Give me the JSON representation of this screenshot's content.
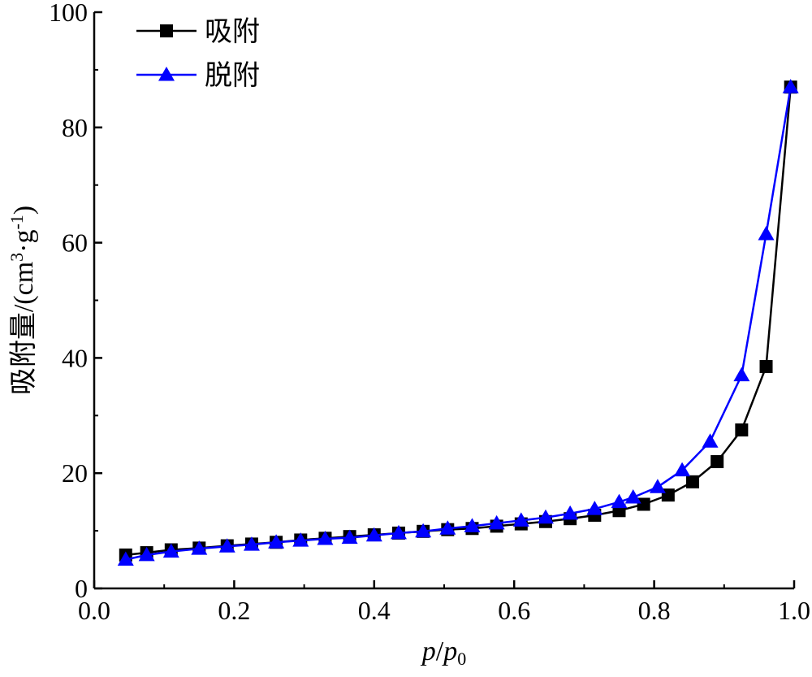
{
  "chart_data": {
    "type": "line",
    "title": "",
    "xlabel": "p/p0",
    "xlabel_parts": {
      "p": "p",
      "slash": "/",
      "p0": "p",
      "sub": "0"
    },
    "ylabel": "吸附量/(cm3·g-1)",
    "ylabel_parts": {
      "main": "吸附量/(cm",
      "sup1": "3",
      "mid": "·g",
      "sup2": "-1",
      "end": ")"
    },
    "xlim": [
      0.0,
      1.0
    ],
    "ylim": [
      0,
      100
    ],
    "x_ticks": [
      "0.0",
      "0.2",
      "0.4",
      "0.6",
      "0.8",
      "1.0"
    ],
    "y_ticks": [
      "0",
      "20",
      "40",
      "60",
      "80",
      "100"
    ],
    "grid": false,
    "legend_position": "top-left",
    "series": [
      {
        "name": "吸附",
        "color": "#000000",
        "marker": "square",
        "x": [
          0.045,
          0.075,
          0.11,
          0.15,
          0.19,
          0.225,
          0.26,
          0.295,
          0.33,
          0.365,
          0.4,
          0.435,
          0.47,
          0.505,
          0.54,
          0.575,
          0.61,
          0.645,
          0.68,
          0.715,
          0.75,
          0.785,
          0.82,
          0.855,
          0.89,
          0.925,
          0.96,
          0.995
        ],
        "y": [
          5.8,
          6.2,
          6.7,
          7.0,
          7.4,
          7.7,
          8.0,
          8.4,
          8.7,
          9.0,
          9.3,
          9.6,
          9.9,
          10.2,
          10.4,
          10.8,
          11.2,
          11.6,
          12.1,
          12.7,
          13.5,
          14.6,
          16.2,
          18.5,
          22.0,
          27.5,
          38.5,
          87.0
        ]
      },
      {
        "name": "脱附",
        "color": "#0000ff",
        "marker": "triangle",
        "x": [
          0.045,
          0.075,
          0.11,
          0.15,
          0.19,
          0.225,
          0.26,
          0.295,
          0.33,
          0.365,
          0.4,
          0.435,
          0.47,
          0.505,
          0.54,
          0.575,
          0.61,
          0.645,
          0.68,
          0.715,
          0.75,
          0.77,
          0.805,
          0.84,
          0.88,
          0.925,
          0.96,
          0.995
        ],
        "y": [
          5.0,
          5.8,
          6.4,
          6.9,
          7.3,
          7.6,
          8.0,
          8.3,
          8.6,
          8.8,
          9.2,
          9.6,
          9.9,
          10.4,
          10.8,
          11.3,
          11.8,
          12.3,
          13.0,
          13.8,
          15.0,
          15.8,
          17.6,
          20.5,
          25.5,
          37.0,
          61.5,
          87.0
        ]
      }
    ]
  }
}
